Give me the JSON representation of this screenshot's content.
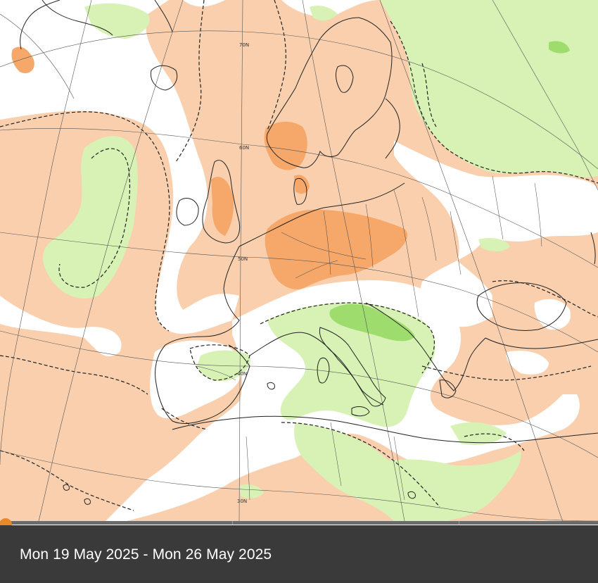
{
  "map": {
    "legend_colors": {
      "warm_light": "#f9cfad",
      "warm_strong": "#f6a86a",
      "wet_light": "#d7f2b4",
      "wet_strong": "#9fdc6e",
      "neutral": "#ffffff",
      "coast": "#222222",
      "graticule": "#555555"
    },
    "latitude_labels": [
      "70N",
      "60N",
      "50N",
      "40N",
      "30N"
    ]
  },
  "timeline": {
    "handle_color": "#e8882a",
    "position_fraction": 0.0
  },
  "caption": {
    "date_range": "Mon 19 May 2025 - Mon 26 May 2025"
  }
}
